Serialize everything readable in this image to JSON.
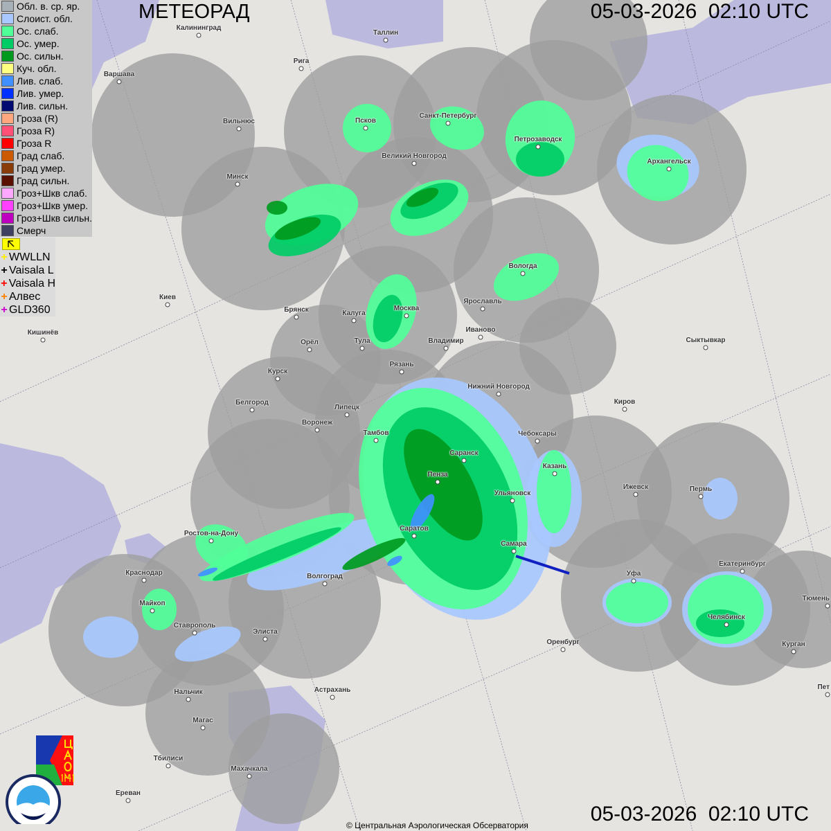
{
  "header": {
    "title": "МЕТЕОРАД",
    "timestamp": "05-03-2026  02:10 UTC"
  },
  "footer": {
    "copyright": "© Центральная Аэрологическая Обсерватория",
    "timestamp": "05-03-2026  02:10 UTC"
  },
  "legend": {
    "items": [
      {
        "label": "Обл. в. ср. яр.",
        "color": "#a8b0b8"
      },
      {
        "label": "Слоист. обл.",
        "color": "#a8c8ff"
      },
      {
        "label": "Ос. слаб.",
        "color": "#50ff98"
      },
      {
        "label": "Ос. умер.",
        "color": "#00cc66"
      },
      {
        "label": "Ос. сильн.",
        "color": "#009a1e"
      },
      {
        "label": "Куч. обл.",
        "color": "#ffff80"
      },
      {
        "label": "Лив. слаб.",
        "color": "#4090ff"
      },
      {
        "label": "Лив. умер.",
        "color": "#0030ff"
      },
      {
        "label": "Лив. сильн.",
        "color": "#000a70"
      },
      {
        "label": "Гроза (R)",
        "color": "#ffa880"
      },
      {
        "label": "Гроза R)",
        "color": "#ff5078"
      },
      {
        "label": "Гроза R",
        "color": "#ff0000"
      },
      {
        "label": "Град слаб.",
        "color": "#cc5a00"
      },
      {
        "label": "Град умер.",
        "color": "#8a3c08"
      },
      {
        "label": "Град сильн.",
        "color": "#5a1000"
      },
      {
        "label": "Гроз+Шкв слаб.",
        "color": "#ffa8ff"
      },
      {
        "label": "Гроз+Шкв умер.",
        "color": "#ff40ff"
      },
      {
        "label": "Гроз+Шкв сильн.",
        "color": "#c000c0"
      },
      {
        "label": "Смерч",
        "color": "#404060"
      }
    ]
  },
  "lightning": {
    "items": [
      {
        "label": "WWLLN",
        "color": "#ffee00"
      },
      {
        "label": "Vaisala L",
        "color": "#000000"
      },
      {
        "label": "Vaisala H",
        "color": "#ff0000"
      },
      {
        "label": "Алвес",
        "color": "#ff8000"
      },
      {
        "label": "GLD360",
        "color": "#cc00cc"
      }
    ]
  },
  "logos": {
    "cao": "ЦАО 1941",
    "roshydromet": "РОСГИДРОМЕТ ROSHYDROMET"
  },
  "cities": [
    "Калининград",
    "Таллин",
    "Рига",
    "Варшава",
    "Санкт-Петербург",
    "Псков",
    "Петрозаводск",
    "Архангельск",
    "Великий Новгород",
    "Вильнюс",
    "Минск",
    "Вологда",
    "Ярославль",
    "Москва",
    "Калуга",
    "Брянск",
    "Киев",
    "Иваново",
    "Тула",
    "Владимир",
    "Орёл",
    "Кишинёв",
    "Сыктывкар",
    "Рязань",
    "Курск",
    "Нижний Новгород",
    "Белгород",
    "Липецк",
    "Киров",
    "Воронеж",
    "Тамбов",
    "Чебоксары",
    "Саранск",
    "Пенза",
    "Казань",
    "Ижевск",
    "Пермь",
    "Ульяновск",
    "Ростов-на-Дону",
    "Саратов",
    "Самара",
    "Екатеринбург",
    "Краснодар",
    "Волгоград",
    "Уфа",
    "Тюмень",
    "Майкоп",
    "Челябинск",
    "Ставрополь",
    "Элиста",
    "Оренбург",
    "Курган",
    "Астрахань",
    "Нальчик",
    "Пет",
    "Магас",
    "Тбилиси",
    "Махачкала",
    "Ереван"
  ]
}
